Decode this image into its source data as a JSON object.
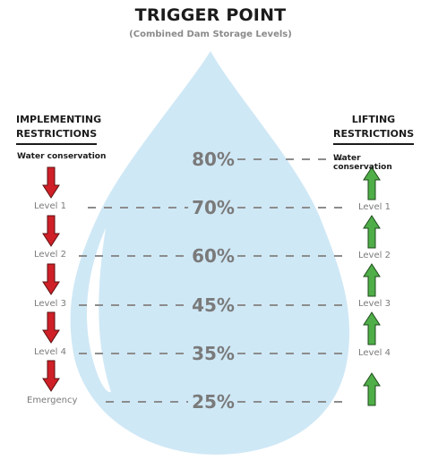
{
  "title": "TRIGGER POINT",
  "subtitle": "(Combined Dam Storage Levels)",
  "left_column": {
    "heading_line1": "IMPLEMENTING",
    "heading_line2": "RESTRICTIONS",
    "start_label": "Water conservation",
    "levels": [
      "Level 1",
      "Level 2",
      "Level 3",
      "Level 4",
      "Emergency"
    ]
  },
  "right_column": {
    "heading_line1": "LIFTING",
    "heading_line2": "RESTRICTIONS",
    "start_label": "Water conservation",
    "levels": [
      "Level 1",
      "Level 2",
      "Level 3",
      "Level 4"
    ]
  },
  "trigger_points": [
    "80%",
    "70%",
    "60%",
    "45%",
    "35%",
    "25%"
  ],
  "colors": {
    "drop": "#cfe8f6",
    "down_arrow": "#cf2027",
    "up_arrow": "#4fae48",
    "dash": "#8c8c8c",
    "percent_text": "#7a7a7a"
  }
}
